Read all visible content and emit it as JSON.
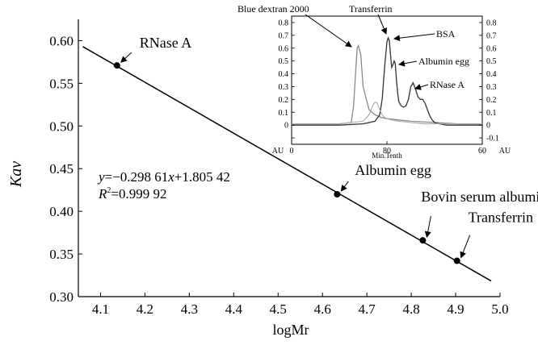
{
  "chart_data": [
    {
      "type": "scatter",
      "xlabel": "logMr",
      "ylabel": "Kav",
      "xlim": [
        4.05,
        5.0
      ],
      "ylim": [
        0.3,
        0.625
      ],
      "xticks": [
        "4.1",
        "4.2",
        "4.3",
        "4.4",
        "4.5",
        "4.6",
        "4.7",
        "4.8",
        "4.9",
        "5.0"
      ],
      "yticks": [
        "0.30",
        "0.35",
        "0.40",
        "0.45",
        "0.50",
        "0.55",
        "0.60"
      ],
      "points": [
        {
          "label": "RNase A",
          "x": 4.137,
          "y": 0.571
        },
        {
          "label": "Albumin egg",
          "x": 4.633,
          "y": 0.42
        },
        {
          "label": "Bovin serum albumin",
          "x": 4.826,
          "y": 0.366
        },
        {
          "label": "Transferrin",
          "x": 4.903,
          "y": 0.342
        }
      ],
      "fit": {
        "slope": -0.29861,
        "intercept": 1.80542,
        "x_range": [
          4.06,
          4.98
        ]
      },
      "equation": {
        "y_var": "y",
        "equals": "=−0.298 61",
        "x_var": "x",
        "plus_term": "+1.805 42"
      },
      "r2": {
        "r": "R",
        "sup": "2",
        "value": "=0.999 92"
      }
    },
    {
      "type": "line",
      "xlabel": "Min.Tenth",
      "ylabel_left": "AU",
      "ylabel_right": "AU",
      "xlim": [
        0,
        160
      ],
      "ylim": [
        -0.15,
        0.85
      ],
      "xticks": [
        "0",
        "80",
        "60"
      ],
      "yticks": [
        "0.8",
        "0.7",
        "0.6",
        "0.5",
        "0.4",
        "0.3",
        "0.2",
        "0.1",
        "0",
        "-0.1"
      ],
      "yticks_values": [
        0.8,
        0.7,
        0.6,
        0.5,
        0.4,
        0.3,
        0.2,
        0.1,
        0,
        -0.1
      ],
      "annotations": [
        "Blue dextran 2000",
        "Transferrin",
        "BSA",
        "Albumin egg",
        "RNase A"
      ],
      "series": [
        {
          "x": [
            0,
            20,
            40,
            50,
            52,
            54,
            55,
            56,
            58,
            60,
            65,
            70,
            75,
            80,
            90,
            100,
            120,
            140,
            160
          ],
          "y": [
            0.01,
            0.01,
            0.01,
            0.02,
            0.15,
            0.45,
            0.6,
            0.62,
            0.55,
            0.3,
            0.12,
            0.08,
            0.06,
            0.05,
            0.04,
            0.03,
            0.02,
            0.01,
            0.01
          ]
        },
        {
          "x": [
            0,
            40,
            60,
            70,
            74,
            76,
            78,
            80,
            81,
            82,
            83,
            84,
            85,
            86,
            87,
            88,
            89,
            90,
            92,
            94,
            96,
            98,
            100,
            102,
            104,
            106,
            108,
            110,
            112,
            114,
            116,
            118,
            120,
            124,
            130,
            140,
            160
          ],
          "y": [
            0.0,
            0.0,
            0.01,
            0.03,
            0.08,
            0.2,
            0.45,
            0.65,
            0.68,
            0.66,
            0.55,
            0.45,
            0.47,
            0.5,
            0.48,
            0.35,
            0.25,
            0.18,
            0.15,
            0.14,
            0.15,
            0.2,
            0.3,
            0.33,
            0.28,
            0.22,
            0.2,
            0.2,
            0.17,
            0.12,
            0.07,
            0.04,
            0.02,
            0.01,
            0.0,
            0.0,
            0.0
          ]
        },
        {
          "x": [
            0,
            40,
            60,
            65,
            68,
            70,
            72,
            74,
            76,
            78,
            80,
            84,
            90,
            100,
            110,
            120,
            140,
            160
          ],
          "y": [
            0.01,
            0.01,
            0.03,
            0.08,
            0.15,
            0.18,
            0.17,
            0.12,
            0.08,
            0.06,
            0.05,
            0.04,
            0.03,
            0.02,
            0.01,
            0.01,
            0.01,
            0.01
          ]
        }
      ]
    }
  ]
}
